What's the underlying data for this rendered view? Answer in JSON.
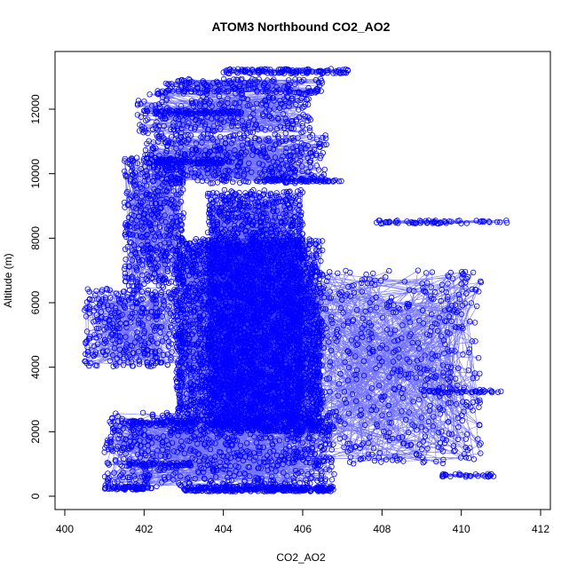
{
  "chart_data": {
    "type": "scatter",
    "title": "ATOM3 Northbound CO2_AO2",
    "xlabel": "CO2_AO2",
    "ylabel": "Altitude (m)",
    "xlim": [
      400,
      412
    ],
    "ylim": [
      0,
      13200
    ],
    "x_ticks": [
      "400",
      "402",
      "404",
      "406",
      "408",
      "410",
      "412"
    ],
    "y_ticks": [
      "0",
      "2000",
      "4000",
      "6000",
      "8000",
      "10000",
      "12000"
    ],
    "series": [
      {
        "marker": "open-circle",
        "line": true,
        "color": "#0000ff",
        "clusters": [
          {
            "x": [
              401.0,
              402.2
            ],
            "y": [
              200,
              300
            ],
            "n": 60
          },
          {
            "x": [
              403.0,
              406.8
            ],
            "y": [
              150,
              300
            ],
            "n": 300
          },
          {
            "x": [
              401.0,
              406.8
            ],
            "y": [
              300,
              2600
            ],
            "n": 700
          },
          {
            "x": [
              401.6,
              403.2
            ],
            "y": [
              2200,
              2350
            ],
            "n": 60
          },
          {
            "x": [
              401.5,
              403.2
            ],
            "y": [
              950,
              1050
            ],
            "n": 50
          },
          {
            "x": [
              402.8,
              406.5
            ],
            "y": [
              2000,
              8000
            ],
            "n": 2600
          },
          {
            "x": [
              403.6,
              406.0
            ],
            "y": [
              2000,
              9500
            ],
            "n": 1800
          },
          {
            "x": [
              400.5,
              403.0
            ],
            "y": [
              4000,
              6500
            ],
            "n": 350
          },
          {
            "x": [
              401.5,
              403.0
            ],
            "y": [
              6500,
              10500
            ],
            "n": 450
          },
          {
            "x": [
              405.5,
              410.5
            ],
            "y": [
              1000,
              7000
            ],
            "n": 650
          },
          {
            "x": [
              409.0,
              411.0
            ],
            "y": [
              3200,
              3300
            ],
            "n": 40
          },
          {
            "x": [
              409.5,
              410.9
            ],
            "y": [
              600,
              700
            ],
            "n": 30
          },
          {
            "x": [
              407.8,
              411.2
            ],
            "y": [
              8450,
              8550
            ],
            "n": 60
          },
          {
            "x": [
              402.0,
              406.6
            ],
            "y": [
              9700,
              11200
            ],
            "n": 450
          },
          {
            "x": [
              401.8,
              406.2
            ],
            "y": [
              11200,
              12600
            ],
            "n": 300
          },
          {
            "x": [
              402.5,
              406.5
            ],
            "y": [
              12500,
              12950
            ],
            "n": 160
          },
          {
            "x": [
              404.0,
              407.2
            ],
            "y": [
              13100,
              13250
            ],
            "n": 120
          },
          {
            "x": [
              402.3,
              404.0
            ],
            "y": [
              10300,
              10450
            ],
            "n": 80
          },
          {
            "x": [
              402.0,
              404.6
            ],
            "y": [
              11850,
              11950
            ],
            "n": 70
          },
          {
            "x": [
              405.0,
              407.0
            ],
            "y": [
              9750,
              9850
            ],
            "n": 60
          }
        ]
      }
    ]
  }
}
